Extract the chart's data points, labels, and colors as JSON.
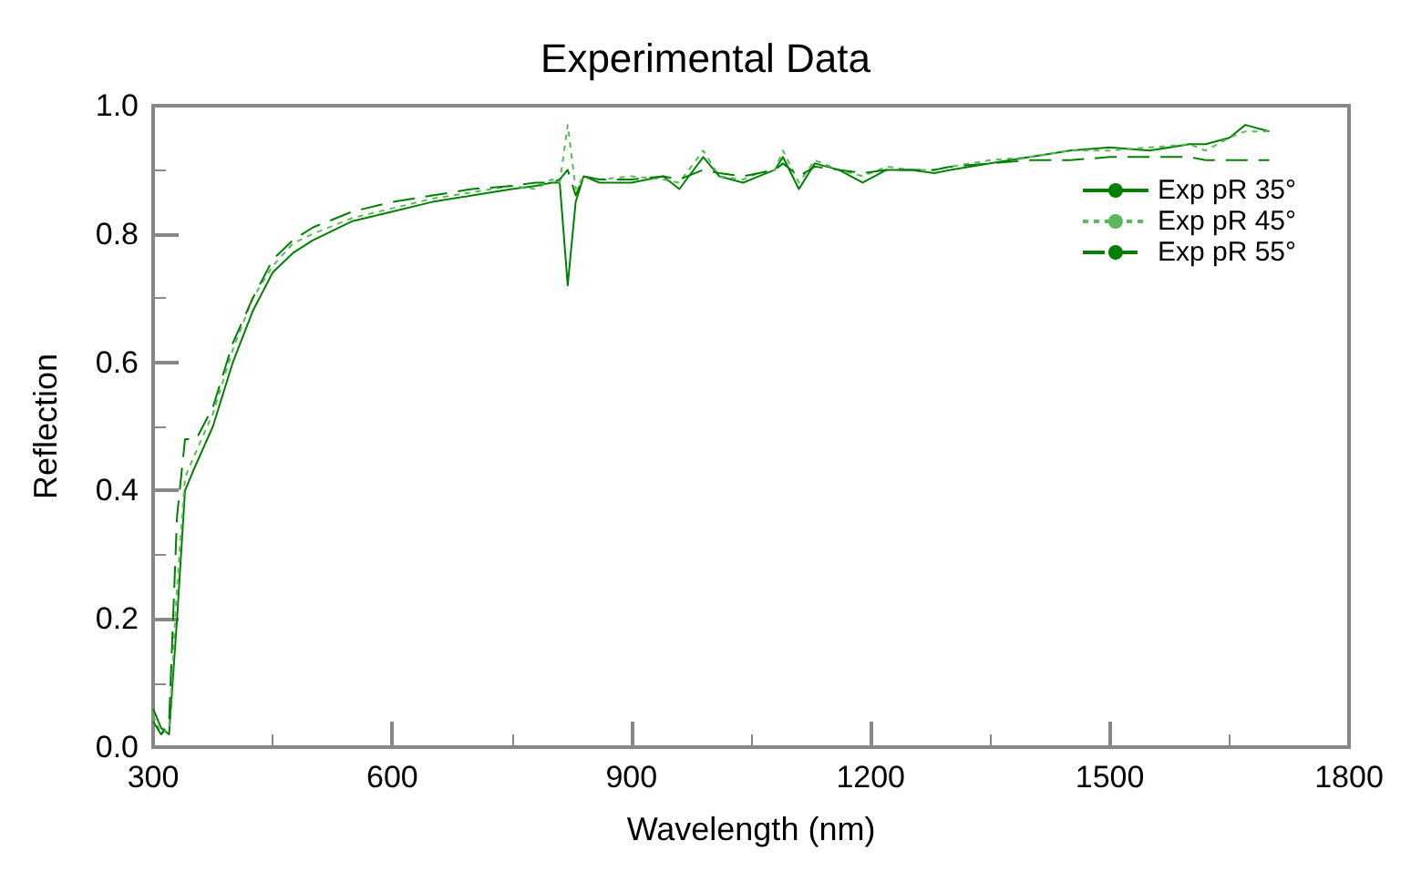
{
  "chart_data": {
    "type": "line",
    "title": "Experimental Data",
    "xlabel": "Wavelength (nm)",
    "ylabel": "Reflection",
    "xlim": [
      300,
      1800
    ],
    "xticks": [
      300,
      600,
      900,
      1200,
      1500,
      1800
    ],
    "ylim": [
      0,
      1
    ],
    "yticks": [
      {
        "value": 0,
        "label": "0.0"
      },
      0.2,
      0.4,
      0.6,
      0.8,
      {
        "value": 1,
        "label": "1.0"
      }
    ],
    "grid": false,
    "legend": "top right",
    "marker": "none",
    "series": [
      {
        "name": "Exp pR 35°",
        "color": "#008000",
        "line_style": "solid",
        "x": [
          300,
          310,
          320,
          330,
          340,
          350,
          375,
          400,
          425,
          450,
          475,
          500,
          550,
          600,
          650,
          700,
          750,
          780,
          800,
          810,
          820,
          830,
          840,
          860,
          900,
          940,
          960,
          990,
          1010,
          1040,
          1060,
          1080,
          1090,
          1110,
          1130,
          1160,
          1190,
          1220,
          1250,
          1280,
          1300,
          1350,
          1400,
          1450,
          1500,
          1550,
          1600,
          1620,
          1650,
          1670,
          1700
        ],
        "values": [
          0.06,
          0.03,
          0.02,
          0.2,
          0.4,
          0.43,
          0.5,
          0.6,
          0.68,
          0.74,
          0.77,
          0.79,
          0.82,
          0.835,
          0.85,
          0.86,
          0.87,
          0.875,
          0.88,
          0.88,
          0.72,
          0.85,
          0.89,
          0.88,
          0.88,
          0.89,
          0.87,
          0.92,
          0.89,
          0.88,
          0.89,
          0.9,
          0.92,
          0.87,
          0.91,
          0.9,
          0.88,
          0.9,
          0.9,
          0.895,
          0.9,
          0.91,
          0.92,
          0.93,
          0.935,
          0.93,
          0.94,
          0.94,
          0.95,
          0.97,
          0.96
        ]
      },
      {
        "name": "Exp pR 45°",
        "color": "#5cb85c",
        "line_style": "dotted",
        "x": [
          300,
          310,
          320,
          330,
          340,
          350,
          375,
          400,
          425,
          450,
          475,
          500,
          550,
          600,
          650,
          700,
          750,
          780,
          800,
          810,
          820,
          830,
          840,
          860,
          900,
          940,
          960,
          990,
          1010,
          1040,
          1060,
          1080,
          1090,
          1110,
          1130,
          1160,
          1190,
          1220,
          1250,
          1280,
          1300,
          1350,
          1400,
          1450,
          1500,
          1550,
          1600,
          1620,
          1650,
          1670,
          1700
        ],
        "values": [
          0.05,
          0.02,
          0.03,
          0.25,
          0.42,
          0.45,
          0.52,
          0.62,
          0.7,
          0.75,
          0.785,
          0.8,
          0.825,
          0.84,
          0.855,
          0.865,
          0.875,
          0.87,
          0.885,
          0.88,
          0.97,
          0.87,
          0.89,
          0.885,
          0.89,
          0.885,
          0.88,
          0.93,
          0.89,
          0.885,
          0.895,
          0.9,
          0.93,
          0.88,
          0.915,
          0.9,
          0.89,
          0.905,
          0.9,
          0.9,
          0.905,
          0.915,
          0.92,
          0.93,
          0.93,
          0.935,
          0.94,
          0.93,
          0.95,
          0.96,
          0.96
        ]
      },
      {
        "name": "Exp pR 55°",
        "color": "#008000",
        "line_style": "dashed",
        "x": [
          300,
          310,
          320,
          330,
          340,
          354,
          375,
          400,
          425,
          450,
          475,
          500,
          550,
          600,
          650,
          700,
          750,
          780,
          800,
          810,
          820,
          830,
          840,
          860,
          900,
          940,
          960,
          990,
          1010,
          1040,
          1060,
          1080,
          1090,
          1110,
          1130,
          1160,
          1190,
          1220,
          1250,
          1280,
          1300,
          1350,
          1400,
          1450,
          1500,
          1550,
          1600,
          1620,
          1650,
          1670,
          1700
        ],
        "values": [
          0.04,
          0.02,
          0.04,
          0.36,
          0.48,
          0.48,
          0.53,
          0.63,
          0.7,
          0.76,
          0.79,
          0.81,
          0.835,
          0.85,
          0.86,
          0.87,
          0.875,
          0.88,
          0.88,
          0.885,
          0.9,
          0.86,
          0.89,
          0.885,
          0.885,
          0.89,
          0.885,
          0.9,
          0.895,
          0.89,
          0.895,
          0.9,
          0.91,
          0.89,
          0.905,
          0.9,
          0.895,
          0.9,
          0.9,
          0.9,
          0.905,
          0.91,
          0.915,
          0.915,
          0.92,
          0.92,
          0.92,
          0.915,
          0.915,
          0.915,
          0.915
        ]
      }
    ]
  }
}
